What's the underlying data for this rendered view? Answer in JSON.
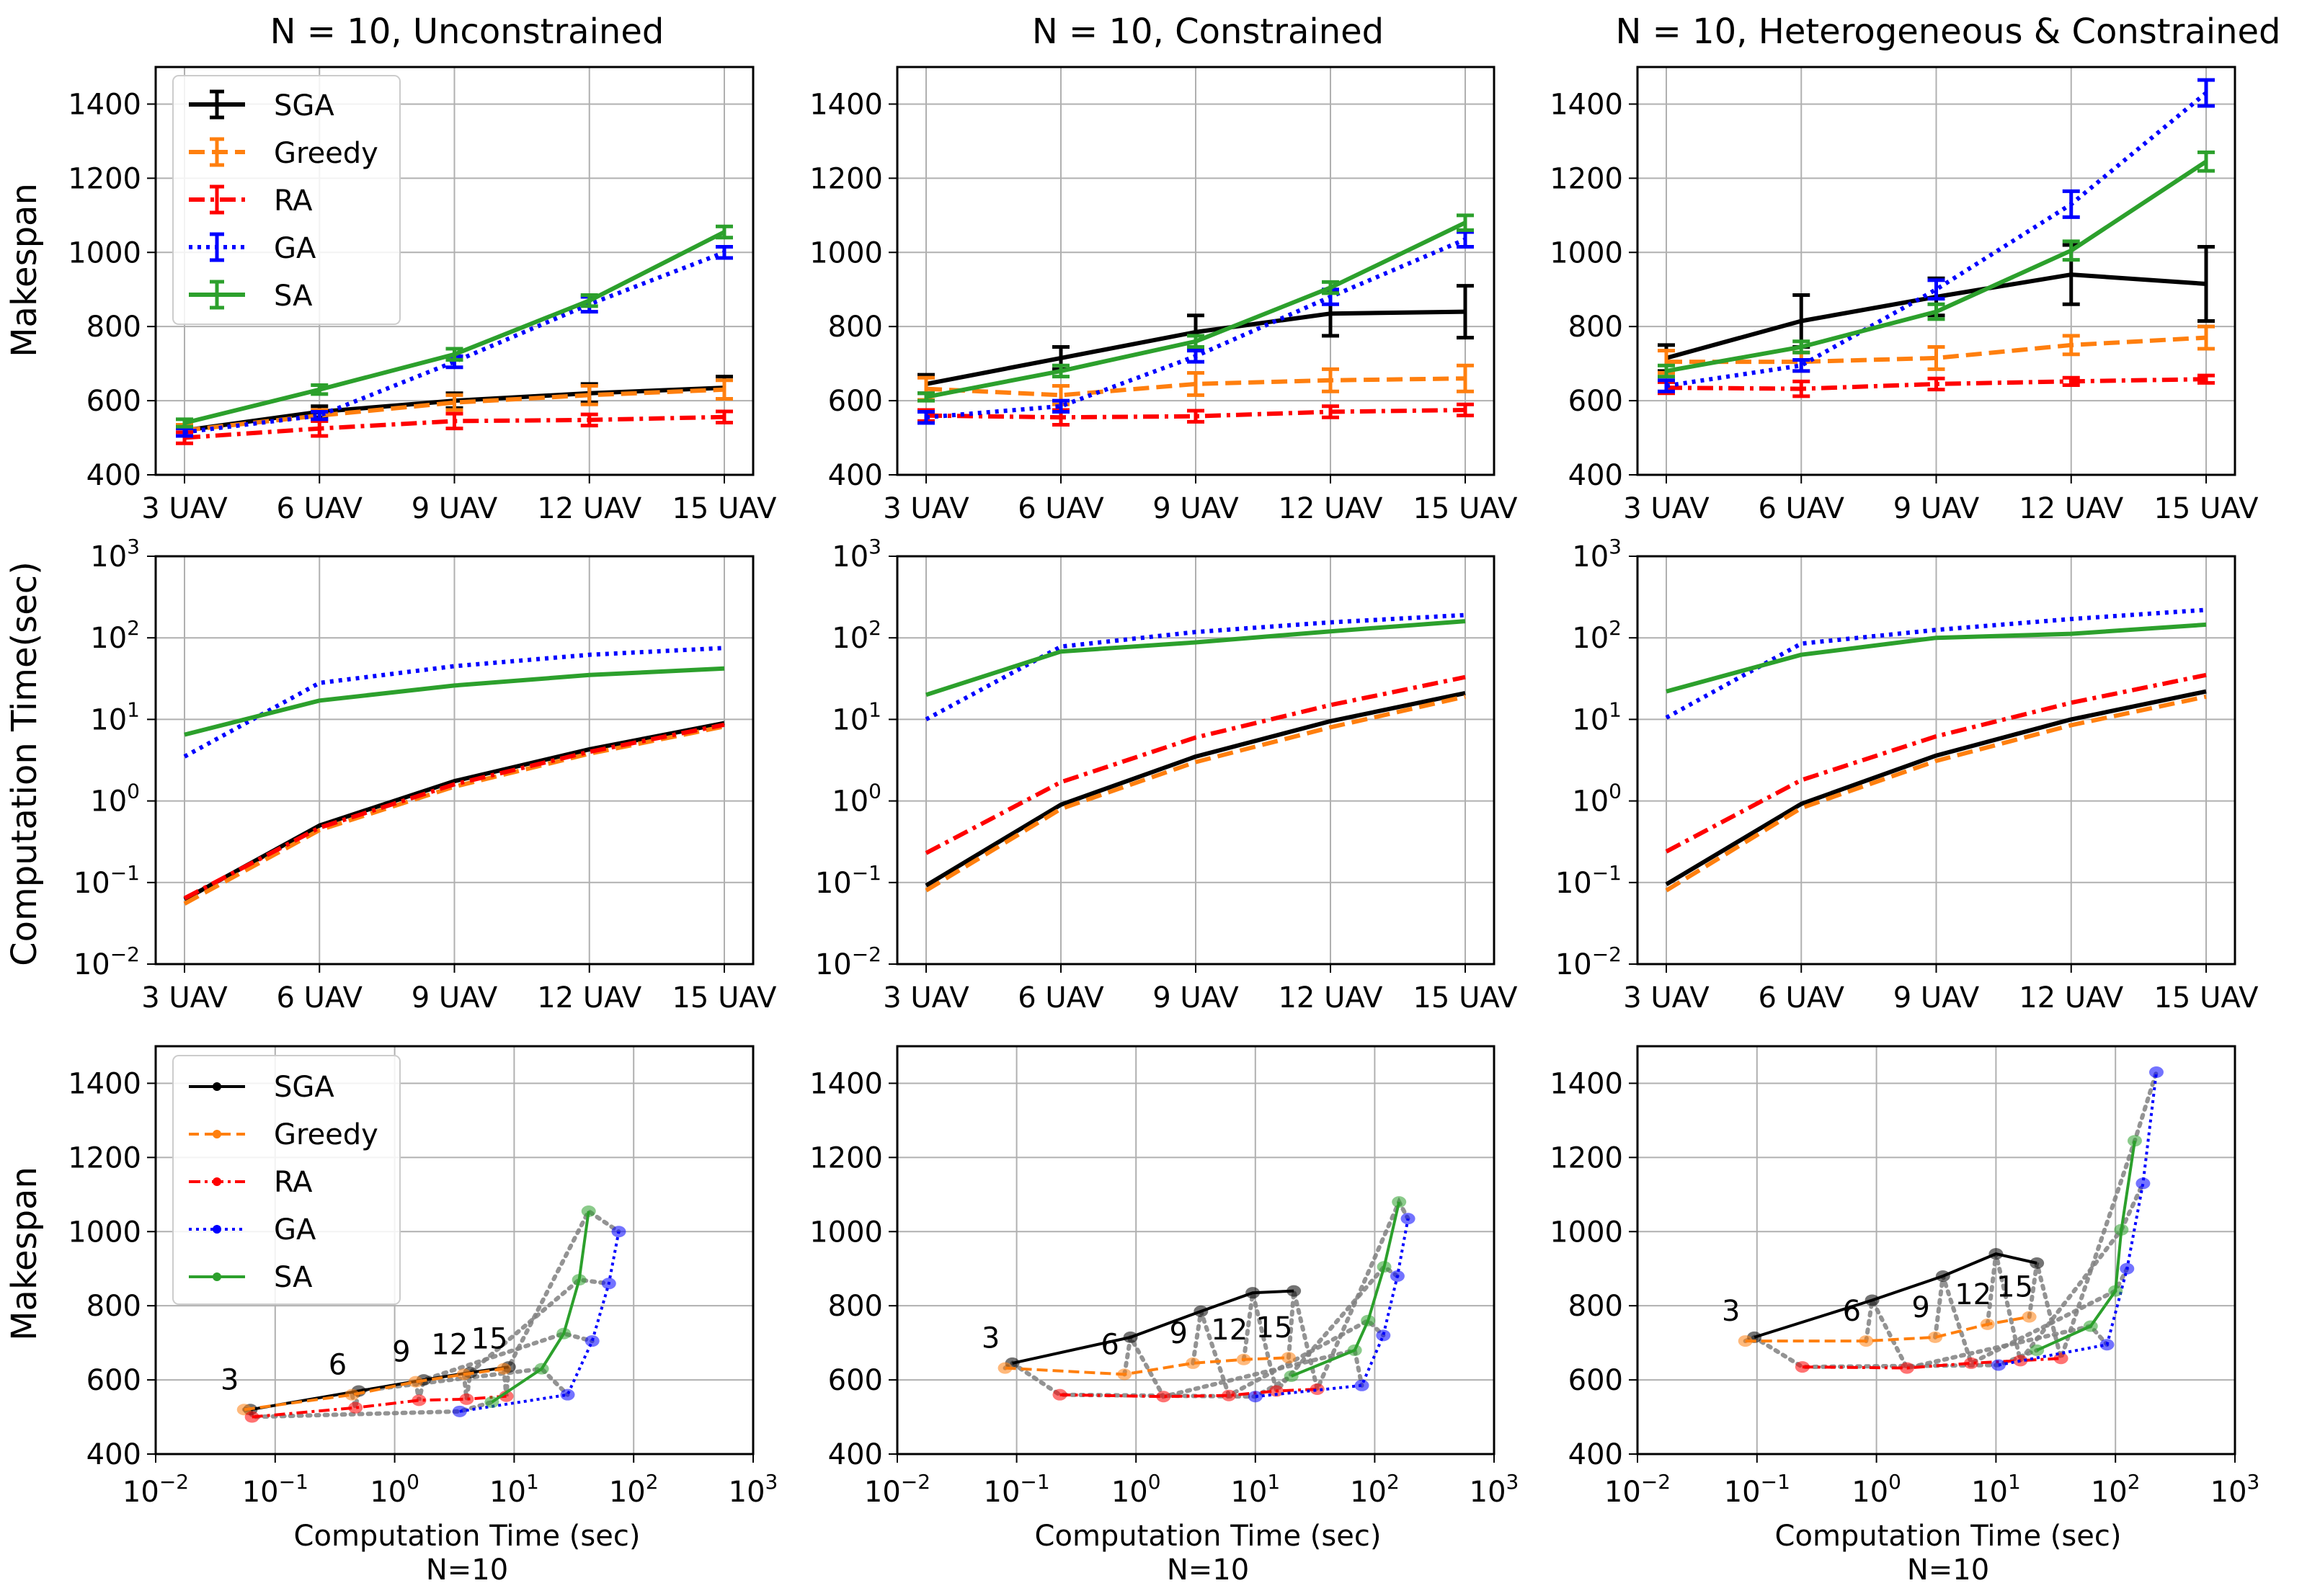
{
  "figure": {
    "column_titles": [
      "N = 10, Unconstrained",
      "N = 10, Constrained",
      "N = 10, Heterogeneous & Constrained"
    ],
    "row1_ylabel": "Makespan",
    "row2_ylabel": "Computation Time(sec)",
    "row3_ylabel": "Makespan",
    "row3_xlabel": "Computation Time (sec)",
    "row3_subxlabel": "N=10"
  },
  "legend_labels": [
    "SGA",
    "Greedy",
    "RA",
    "GA",
    "SA"
  ],
  "colors": {
    "SGA": "#000000",
    "Greedy": "#ff7f0e",
    "RA": "#ff0000",
    "GA": "#0000ff",
    "SA": "#2ca02c",
    "connector": "#808080",
    "grid": "#b0b0b0"
  },
  "chart_data": [
    {
      "type": "line",
      "panel": "row1-col1",
      "title": "N = 10, Unconstrained",
      "ylabel": "Makespan",
      "categories": [
        "3 UAV",
        "6 UAV",
        "9 UAV",
        "12 UAV",
        "15 UAV"
      ],
      "yticks": [
        "400",
        "600",
        "800",
        "1000",
        "1200",
        "1400"
      ],
      "ylim": [
        400,
        1500
      ],
      "series": [
        {
          "name": "SGA",
          "values": [
            520,
            570,
            600,
            620,
            635
          ],
          "errors": [
            15,
            15,
            20,
            25,
            30
          ]
        },
        {
          "name": "Greedy",
          "values": [
            520,
            560,
            595,
            615,
            630
          ],
          "errors": [
            15,
            15,
            20,
            25,
            25
          ]
        },
        {
          "name": "RA",
          "values": [
            500,
            525,
            545,
            548,
            556
          ],
          "errors": [
            15,
            20,
            20,
            15,
            15
          ]
        },
        {
          "name": "GA",
          "values": [
            515,
            560,
            705,
            860,
            1000
          ],
          "errors": [
            10,
            10,
            15,
            20,
            15
          ]
        },
        {
          "name": "SA",
          "values": [
            540,
            630,
            725,
            870,
            1055
          ],
          "errors": [
            10,
            12,
            15,
            15,
            15
          ]
        }
      ]
    },
    {
      "type": "line",
      "panel": "row1-col2",
      "title": "N = 10, Constrained",
      "categories": [
        "3 UAV",
        "6 UAV",
        "9 UAV",
        "12 UAV",
        "15 UAV"
      ],
      "yticks": [
        "400",
        "600",
        "800",
        "1000",
        "1200",
        "1400"
      ],
      "ylim": [
        400,
        1500
      ],
      "series": [
        {
          "name": "SGA",
          "values": [
            645,
            715,
            785,
            835,
            840
          ],
          "errors": [
            25,
            30,
            45,
            60,
            70
          ]
        },
        {
          "name": "Greedy",
          "values": [
            632,
            615,
            645,
            655,
            660
          ],
          "errors": [
            30,
            25,
            30,
            30,
            35
          ]
        },
        {
          "name": "RA",
          "values": [
            560,
            555,
            558,
            570,
            575
          ],
          "errors": [
            15,
            20,
            15,
            15,
            15
          ]
        },
        {
          "name": "GA",
          "values": [
            555,
            585,
            720,
            880,
            1035
          ],
          "errors": [
            15,
            15,
            15,
            20,
            20
          ]
        },
        {
          "name": "SA",
          "values": [
            610,
            680,
            760,
            905,
            1080
          ],
          "errors": [
            10,
            15,
            15,
            15,
            20
          ]
        }
      ]
    },
    {
      "type": "line",
      "panel": "row1-col3",
      "title": "N = 10, Heterogeneous & Constrained",
      "categories": [
        "3 UAV",
        "6 UAV",
        "9 UAV",
        "12 UAV",
        "15 UAV"
      ],
      "yticks": [
        "400",
        "600",
        "800",
        "1000",
        "1200",
        "1400"
      ],
      "ylim": [
        400,
        1500
      ],
      "series": [
        {
          "name": "SGA",
          "values": [
            715,
            815,
            880,
            940,
            915
          ],
          "errors": [
            35,
            70,
            50,
            80,
            100
          ]
        },
        {
          "name": "Greedy",
          "values": [
            705,
            705,
            715,
            750,
            770
          ],
          "errors": [
            30,
            25,
            30,
            25,
            30
          ]
        },
        {
          "name": "RA",
          "values": [
            635,
            632,
            645,
            652,
            658
          ],
          "errors": [
            15,
            20,
            15,
            10,
            10
          ]
        },
        {
          "name": "GA",
          "values": [
            640,
            695,
            900,
            1130,
            1430
          ],
          "errors": [
            15,
            15,
            25,
            35,
            35
          ]
        },
        {
          "name": "SA",
          "values": [
            680,
            745,
            840,
            1005,
            1245
          ],
          "errors": [
            15,
            15,
            20,
            25,
            25
          ]
        }
      ]
    },
    {
      "type": "line",
      "panel": "row2-col1",
      "scale": "log",
      "ylabel": "Computation Time(sec)",
      "categories": [
        "3 UAV",
        "6 UAV",
        "9 UAV",
        "12 UAV",
        "15 UAV"
      ],
      "yticks": [
        "-2",
        "-1",
        "0",
        "1",
        "2",
        "3"
      ],
      "ylim_log10": [
        -2,
        3
      ],
      "series": [
        {
          "name": "SGA",
          "values": [
            0.062,
            0.5,
            1.75,
            4.3,
            9.0
          ]
        },
        {
          "name": "Greedy",
          "values": [
            0.055,
            0.44,
            1.5,
            3.8,
            8.2
          ]
        },
        {
          "name": "RA",
          "values": [
            0.064,
            0.47,
            1.6,
            4.0,
            8.6
          ]
        },
        {
          "name": "GA",
          "values": [
            3.5,
            28,
            45,
            62,
            75
          ]
        },
        {
          "name": "SA",
          "values": [
            6.5,
            17,
            26,
            35,
            42
          ]
        }
      ]
    },
    {
      "type": "line",
      "panel": "row2-col2",
      "scale": "log",
      "categories": [
        "3 UAV",
        "6 UAV",
        "9 UAV",
        "12 UAV",
        "15 UAV"
      ],
      "yticks": [
        "-2",
        "-1",
        "0",
        "1",
        "2",
        "3"
      ],
      "ylim_log10": [
        -2,
        3
      ],
      "series": [
        {
          "name": "SGA",
          "values": [
            0.092,
            0.9,
            3.5,
            9.5,
            21
          ]
        },
        {
          "name": "Greedy",
          "values": [
            0.08,
            0.8,
            3.0,
            8.0,
            19
          ]
        },
        {
          "name": "RA",
          "values": [
            0.23,
            1.7,
            6.0,
            15,
            33
          ]
        },
        {
          "name": "GA",
          "values": [
            10,
            78,
            118,
            155,
            190
          ]
        },
        {
          "name": "SA",
          "values": [
            20,
            68,
            88,
            120,
            160
          ]
        }
      ]
    },
    {
      "type": "line",
      "panel": "row2-col3",
      "scale": "log",
      "categories": [
        "3 UAV",
        "6 UAV",
        "9 UAV",
        "12 UAV",
        "15 UAV"
      ],
      "yticks": [
        "-2",
        "-1",
        "0",
        "1",
        "2",
        "3"
      ],
      "ylim_log10": [
        -2,
        3
      ],
      "series": [
        {
          "name": "SGA",
          "values": [
            0.095,
            0.92,
            3.6,
            10,
            22
          ]
        },
        {
          "name": "Greedy",
          "values": [
            0.08,
            0.82,
            3.1,
            8.5,
            19
          ]
        },
        {
          "name": "RA",
          "values": [
            0.24,
            1.8,
            6.2,
            16,
            35
          ]
        },
        {
          "name": "GA",
          "values": [
            10.5,
            85,
            125,
            170,
            220
          ]
        },
        {
          "name": "SA",
          "values": [
            22,
            62,
            100,
            112,
            145
          ]
        }
      ]
    },
    {
      "type": "scatter",
      "panel": "row3-col1",
      "ylabel": "Makespan",
      "xlabel": "Computation Time (sec)",
      "subxlabel": "N=10",
      "xscale": "log",
      "xticks": [
        "-2",
        "-1",
        "0",
        "1",
        "2",
        "3"
      ],
      "xlim_log10": [
        -2,
        3
      ],
      "yticks": [
        "400",
        "600",
        "800",
        "1000",
        "1200",
        "1400"
      ],
      "ylim": [
        400,
        1500
      ],
      "point_labels": [
        "3",
        "6",
        "9",
        "12",
        "15"
      ],
      "series": [
        {
          "name": "SGA",
          "x": [
            0.062,
            0.5,
            1.75,
            4.3,
            9.0
          ],
          "y": [
            520,
            570,
            600,
            620,
            635
          ]
        },
        {
          "name": "Greedy",
          "x": [
            0.055,
            0.44,
            1.5,
            3.8,
            8.2
          ],
          "y": [
            520,
            560,
            595,
            615,
            630
          ]
        },
        {
          "name": "RA",
          "x": [
            0.064,
            0.47,
            1.6,
            4.0,
            8.6
          ],
          "y": [
            500,
            525,
            545,
            548,
            556
          ]
        },
        {
          "name": "GA",
          "x": [
            3.5,
            28,
            45,
            62,
            75
          ],
          "y": [
            515,
            560,
            705,
            860,
            1000
          ]
        },
        {
          "name": "SA",
          "x": [
            6.5,
            17,
            26,
            35,
            42
          ],
          "y": [
            540,
            630,
            725,
            870,
            1055
          ]
        }
      ]
    },
    {
      "type": "scatter",
      "panel": "row3-col2",
      "xlabel": "Computation Time (sec)",
      "subxlabel": "N=10",
      "xscale": "log",
      "xticks": [
        "-2",
        "-1",
        "0",
        "1",
        "2",
        "3"
      ],
      "xlim_log10": [
        -2,
        3
      ],
      "yticks": [
        "400",
        "600",
        "800",
        "1000",
        "1200",
        "1400"
      ],
      "ylim": [
        400,
        1500
      ],
      "point_labels": [
        "3",
        "6",
        "9",
        "12",
        "15"
      ],
      "series": [
        {
          "name": "SGA",
          "x": [
            0.092,
            0.9,
            3.5,
            9.5,
            21
          ],
          "y": [
            645,
            715,
            785,
            835,
            840
          ]
        },
        {
          "name": "Greedy",
          "x": [
            0.08,
            0.8,
            3.0,
            8.0,
            19
          ],
          "y": [
            632,
            615,
            645,
            655,
            660
          ]
        },
        {
          "name": "RA",
          "x": [
            0.23,
            1.7,
            6.0,
            15,
            33
          ],
          "y": [
            560,
            555,
            558,
            570,
            575
          ]
        },
        {
          "name": "GA",
          "x": [
            10,
            78,
            118,
            155,
            190
          ],
          "y": [
            555,
            585,
            720,
            880,
            1035
          ]
        },
        {
          "name": "SA",
          "x": [
            20,
            68,
            88,
            120,
            160
          ],
          "y": [
            610,
            680,
            760,
            905,
            1080
          ]
        }
      ]
    },
    {
      "type": "scatter",
      "panel": "row3-col3",
      "xlabel": "Computation Time (sec)",
      "subxlabel": "N=10",
      "xscale": "log",
      "xticks": [
        "-2",
        "-1",
        "0",
        "1",
        "2",
        "3"
      ],
      "xlim_log10": [
        -2,
        3
      ],
      "yticks": [
        "400",
        "600",
        "800",
        "1000",
        "1200",
        "1400"
      ],
      "ylim": [
        400,
        1500
      ],
      "point_labels": [
        "3",
        "6",
        "9",
        "12",
        "15"
      ],
      "series": [
        {
          "name": "SGA",
          "x": [
            0.095,
            0.92,
            3.6,
            10,
            22
          ],
          "y": [
            715,
            815,
            880,
            940,
            915
          ]
        },
        {
          "name": "Greedy",
          "x": [
            0.08,
            0.82,
            3.1,
            8.5,
            19
          ],
          "y": [
            705,
            705,
            715,
            750,
            770
          ]
        },
        {
          "name": "RA",
          "x": [
            0.24,
            1.8,
            6.2,
            16,
            35
          ],
          "y": [
            635,
            632,
            645,
            652,
            658
          ]
        },
        {
          "name": "GA",
          "x": [
            10.5,
            85,
            125,
            170,
            220
          ],
          "y": [
            640,
            695,
            900,
            1130,
            1430
          ]
        },
        {
          "name": "SA",
          "x": [
            22,
            62,
            100,
            112,
            145
          ],
          "y": [
            680,
            745,
            840,
            1005,
            1245
          ]
        }
      ]
    }
  ]
}
